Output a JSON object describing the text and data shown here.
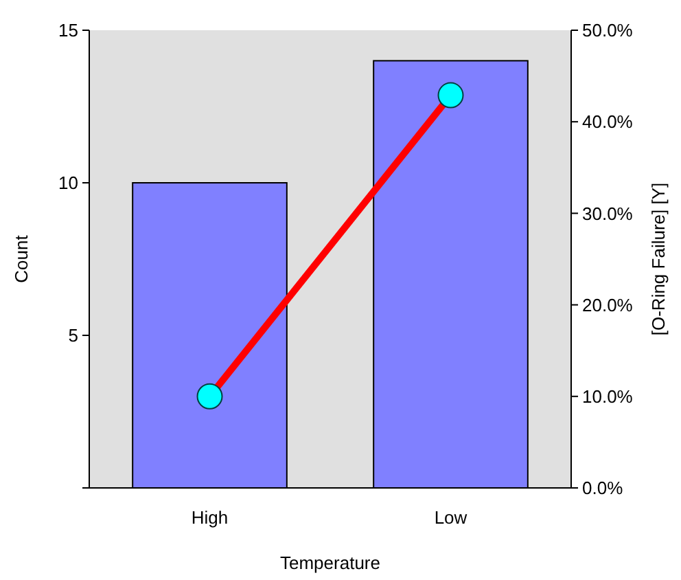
{
  "chart_data": {
    "type": "bar",
    "xlabel": "Temperature",
    "ylabel": "Count",
    "y2label": "[O-Ring Failure] [Y]",
    "categories": [
      "High",
      "Low"
    ],
    "series": [
      {
        "color": "#8080ff",
        "values": [
          10,
          14
        ]
      },
      {
        "type": "line",
        "axis": "y2",
        "color": "#ff0000",
        "marker": "circle",
        "values": [
          10,
          42.9
        ]
      }
    ],
    "ylim": [
      0,
      15
    ],
    "yticks": [
      {
        "value": 0,
        "label": null
      },
      5,
      10,
      15
    ],
    "y2lim": [
      0,
      50
    ],
    "y2ticks": [
      {
        "value": 0,
        "label": "0.0%"
      },
      {
        "value": 10,
        "label": "10.0%"
      },
      {
        "value": 20,
        "label": "20.0%"
      },
      {
        "value": 30,
        "label": "30.0%"
      },
      {
        "value": 40,
        "label": "40.0%"
      },
      {
        "value": 50,
        "label": "50.0%"
      }
    ],
    "grid": false
  }
}
